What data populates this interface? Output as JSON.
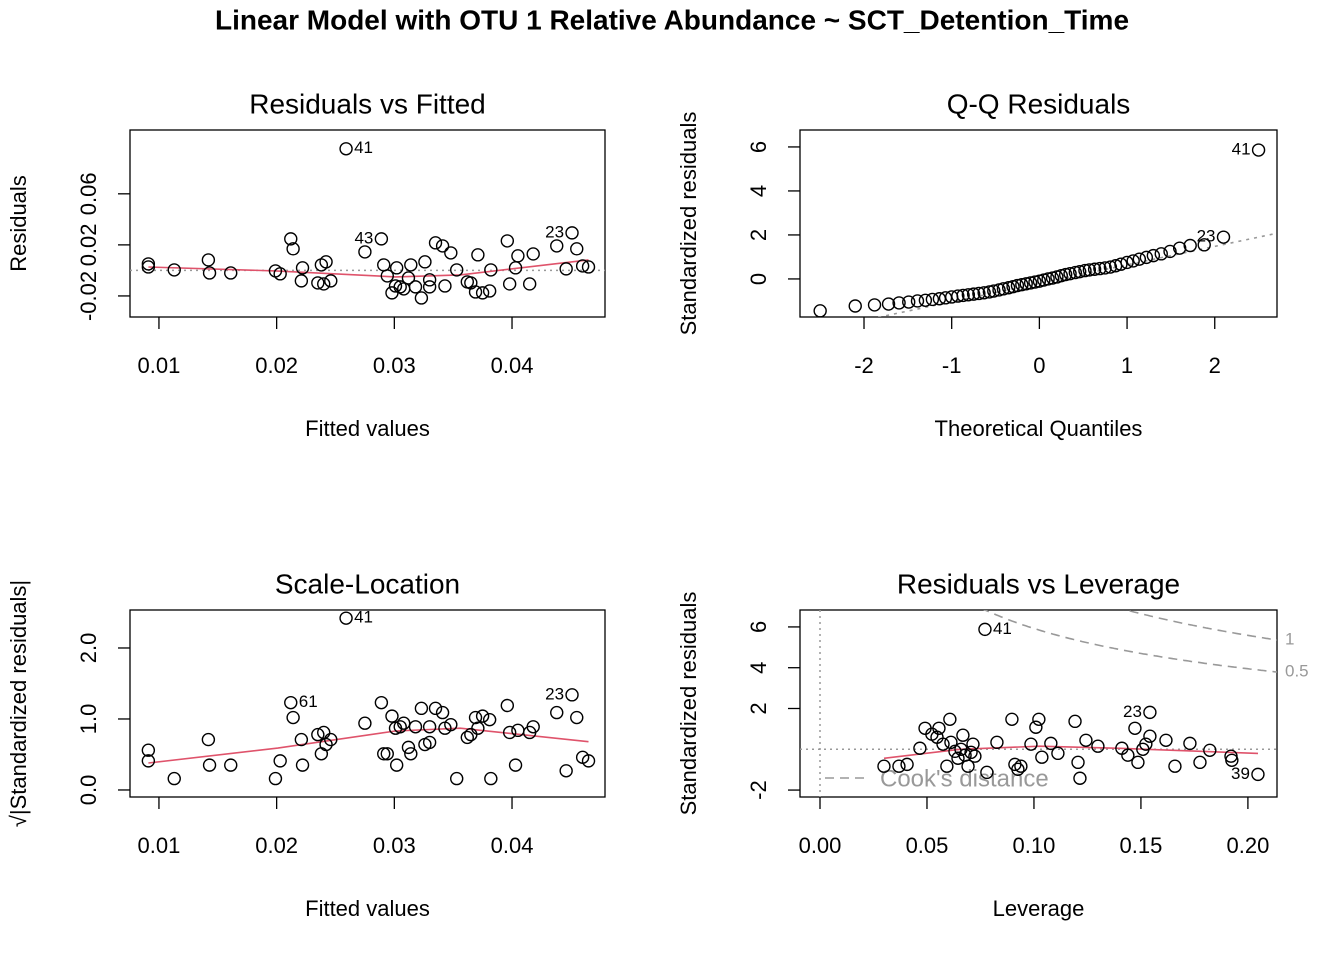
{
  "title": "Linear Model with OTU 1 Relative Abundance ~ SCT_Detention_Time",
  "chart_data": [
    {
      "type": "scatter",
      "title": "Residuals vs Fitted",
      "xlabel": "Fitted values",
      "ylabel": "Residuals",
      "x": [
        0.0091,
        0.0091,
        0.0113,
        0.0142,
        0.0143,
        0.0161,
        0.0199,
        0.0203,
        0.0212,
        0.0214,
        0.0221,
        0.0222,
        0.0235,
        0.0238,
        0.024,
        0.0242,
        0.0246,
        0.0259,
        0.0275,
        0.0289,
        0.0291,
        0.0294,
        0.0298,
        0.0301,
        0.0302,
        0.0305,
        0.0308,
        0.0312,
        0.0314,
        0.0318,
        0.0323,
        0.0326,
        0.033,
        0.033,
        0.0335,
        0.0341,
        0.0343,
        0.0348,
        0.0353,
        0.0362,
        0.0365,
        0.0369,
        0.0371,
        0.0375,
        0.0381,
        0.0382,
        0.0396,
        0.0398,
        0.0403,
        0.0405,
        0.0415,
        0.0418,
        0.0438,
        0.0446,
        0.0451,
        0.0455,
        0.046,
        0.0465
      ],
      "values": [
        0.0027,
        0.0051,
        0.0004,
        0.0082,
        -0.002,
        -0.002,
        -0.0004,
        -0.0027,
        0.0247,
        0.0169,
        -0.0082,
        0.002,
        -0.0098,
        0.0043,
        -0.0106,
        0.0067,
        -0.0082,
        0.0953,
        0.0145,
        0.0247,
        0.0043,
        -0.0043,
        -0.0176,
        -0.0122,
        0.002,
        -0.0129,
        -0.0145,
        -0.0059,
        0.0043,
        -0.0129,
        -0.0216,
        0.0067,
        -0.0129,
        -0.0074,
        0.0216,
        0.0192,
        -0.0122,
        0.0137,
        0.0004,
        -0.009,
        -0.0098,
        -0.0169,
        0.0122,
        -0.0176,
        -0.0161,
        0.0004,
        0.0231,
        -0.0106,
        0.002,
        0.0114,
        -0.0106,
        0.0129,
        0.0192,
        0.0012,
        0.0294,
        0.0169,
        0.0035,
        0.0027
      ],
      "point_labels": [
        null,
        null,
        null,
        null,
        null,
        null,
        null,
        null,
        null,
        null,
        null,
        null,
        null,
        null,
        null,
        null,
        null,
        "41",
        null,
        "43",
        null,
        null,
        null,
        null,
        null,
        null,
        null,
        null,
        null,
        null,
        null,
        null,
        null,
        null,
        null,
        null,
        null,
        null,
        null,
        null,
        null,
        null,
        null,
        null,
        null,
        null,
        null,
        null,
        null,
        null,
        null,
        null,
        null,
        null,
        "23",
        null,
        null,
        null
      ],
      "smooth": {
        "x": [
          0.0091,
          0.0199,
          0.0301,
          0.0356,
          0.0465
        ],
        "values": [
          0.0027,
          -0.0004,
          -0.0051,
          -0.0035,
          0.0082
        ],
        "color": "#df536b"
      },
      "hline": 0,
      "xlim": [
        0.00754,
        0.0479
      ],
      "ylim": [
        -0.0365,
        0.11
      ],
      "xticks": [
        0.01,
        0.02,
        0.03,
        0.04
      ],
      "yticks": [
        -0.02,
        0.02,
        0.06
      ]
    },
    {
      "type": "scatter",
      "title": "Q-Q Residuals",
      "xlabel": "Theoretical Quantiles",
      "ylabel": "Standardized residuals",
      "x": [
        -2.5,
        -2.1,
        -1.88,
        -1.72,
        -1.6,
        -1.49,
        -1.39,
        -1.3,
        -1.22,
        -1.14,
        -1.07,
        -1,
        -0.93,
        -0.87,
        -0.81,
        -0.75,
        -0.69,
        -0.63,
        -0.57,
        -0.52,
        -0.46,
        -0.41,
        -0.35,
        -0.3,
        -0.25,
        -0.2,
        -0.15,
        -0.1,
        -0.05,
        0,
        0.05,
        0.1,
        0.15,
        0.2,
        0.25,
        0.3,
        0.35,
        0.41,
        0.46,
        0.52,
        0.57,
        0.63,
        0.69,
        0.75,
        0.81,
        0.87,
        0.93,
        1,
        1.07,
        1.14,
        1.22,
        1.3,
        1.39,
        1.49,
        1.6,
        1.72,
        1.88,
        2.1,
        2.5
      ],
      "values": [
        -1.45,
        -1.23,
        -1.18,
        -1.14,
        -1.09,
        -1.05,
        -1,
        -0.97,
        -0.93,
        -0.9,
        -0.86,
        -0.82,
        -0.78,
        -0.75,
        -0.72,
        -0.69,
        -0.66,
        -0.63,
        -0.59,
        -0.55,
        -0.5,
        -0.45,
        -0.4,
        -0.35,
        -0.3,
        -0.26,
        -0.22,
        -0.18,
        -0.14,
        -0.1,
        -0.05,
        0,
        0.04,
        0.09,
        0.15,
        0.2,
        0.24,
        0.29,
        0.33,
        0.38,
        0.41,
        0.44,
        0.47,
        0.5,
        0.54,
        0.6,
        0.67,
        0.75,
        0.82,
        0.9,
        0.98,
        1.06,
        1.14,
        1.25,
        1.4,
        1.52,
        1.55,
        1.9,
        5.86
      ],
      "point_labels": [
        null,
        null,
        null,
        null,
        null,
        null,
        null,
        null,
        null,
        null,
        null,
        null,
        null,
        null,
        null,
        null,
        null,
        null,
        null,
        null,
        null,
        null,
        null,
        null,
        null,
        null,
        null,
        null,
        null,
        null,
        null,
        null,
        null,
        null,
        null,
        null,
        null,
        null,
        null,
        null,
        null,
        null,
        null,
        null,
        null,
        null,
        null,
        null,
        null,
        null,
        null,
        null,
        null,
        null,
        null,
        null,
        null,
        "23",
        "41"
      ],
      "ref_line": {
        "intercept": -0.2,
        "slope": 0.84
      },
      "xlim": [
        -2.73,
        2.71
      ],
      "ylim": [
        -1.73,
        6.77
      ],
      "xticks": [
        -2,
        -1,
        0,
        1,
        2
      ],
      "yticks": [
        0,
        2,
        4,
        6
      ]
    },
    {
      "type": "scatter",
      "title": "Scale-Location",
      "xlabel": "Fitted values",
      "ylabel": "√|Standardized residuals|",
      "x": [
        0.0091,
        0.0091,
        0.0113,
        0.0142,
        0.0143,
        0.0161,
        0.0199,
        0.0203,
        0.0212,
        0.0214,
        0.0221,
        0.0222,
        0.0235,
        0.0238,
        0.024,
        0.0242,
        0.0246,
        0.0259,
        0.0275,
        0.0289,
        0.0291,
        0.0294,
        0.0298,
        0.0301,
        0.0302,
        0.0305,
        0.0308,
        0.0312,
        0.0314,
        0.0318,
        0.0323,
        0.0326,
        0.033,
        0.033,
        0.0335,
        0.0341,
        0.0343,
        0.0348,
        0.0353,
        0.0362,
        0.0365,
        0.0369,
        0.0371,
        0.0375,
        0.0381,
        0.0382,
        0.0396,
        0.0398,
        0.0403,
        0.0405,
        0.0415,
        0.0418,
        0.0438,
        0.0446,
        0.0451,
        0.0455,
        0.046,
        0.0465
      ],
      "values": [
        0.41,
        0.56,
        0.16,
        0.71,
        0.35,
        0.35,
        0.16,
        0.41,
        1.23,
        1.02,
        0.71,
        0.35,
        0.78,
        0.51,
        0.81,
        0.64,
        0.71,
        2.42,
        0.94,
        1.23,
        0.51,
        0.51,
        1.04,
        0.87,
        0.35,
        0.89,
        0.94,
        0.6,
        0.51,
        0.89,
        1.15,
        0.64,
        0.89,
        0.67,
        1.15,
        1.09,
        0.87,
        0.92,
        0.16,
        0.74,
        0.78,
        1.02,
        0.87,
        1.04,
        0.99,
        0.16,
        1.19,
        0.81,
        0.35,
        0.84,
        0.81,
        0.89,
        1.09,
        0.27,
        1.34,
        1.02,
        0.46,
        0.41
      ],
      "point_labels": [
        null,
        null,
        null,
        null,
        null,
        null,
        null,
        null,
        "61",
        null,
        null,
        null,
        null,
        null,
        null,
        null,
        null,
        "41",
        null,
        null,
        null,
        null,
        null,
        null,
        null,
        null,
        null,
        null,
        null,
        null,
        null,
        null,
        null,
        null,
        null,
        null,
        null,
        null,
        null,
        null,
        null,
        null,
        null,
        null,
        null,
        null,
        null,
        null,
        null,
        null,
        null,
        null,
        null,
        null,
        "23",
        null,
        null,
        null
      ],
      "smooth": {
        "x": [
          0.0091,
          0.0201,
          0.0301,
          0.0356,
          0.0465
        ],
        "values": [
          0.38,
          0.59,
          0.83,
          0.87,
          0.68
        ],
        "color": "#df536b"
      },
      "xlim": [
        0.00754,
        0.0479
      ],
      "ylim": [
        -0.099,
        2.535
      ],
      "xticks": [
        0.01,
        0.02,
        0.03,
        0.04
      ],
      "yticks": [
        {
          "value": 0,
          "label": "0.0"
        },
        {
          "value": 1,
          "label": "1.0"
        },
        {
          "value": 2,
          "label": "2.0"
        }
      ]
    },
    {
      "type": "scatter",
      "title": "Residuals vs Leverage",
      "xlabel": "Leverage",
      "ylabel": "Standardized residuals",
      "x": [
        0.0299,
        0.0369,
        0.0407,
        0.0467,
        0.0491,
        0.0523,
        0.0547,
        0.0556,
        0.0575,
        0.0593,
        0.0607,
        0.0612,
        0.0631,
        0.0645,
        0.0659,
        0.0668,
        0.0678,
        0.0692,
        0.0706,
        0.0715,
        0.0724,
        0.0771,
        0.078,
        0.0827,
        0.0897,
        0.0911,
        0.0925,
        0.0939,
        0.0986,
        0.1009,
        0.1023,
        0.1037,
        0.1079,
        0.1112,
        0.1192,
        0.1206,
        0.1215,
        0.1243,
        0.1299,
        0.1411,
        0.1439,
        0.1472,
        0.1486,
        0.1509,
        0.1523,
        0.1542,
        0.1542,
        0.1617,
        0.1659,
        0.1729,
        0.1776,
        0.1822,
        0.1921,
        0.1925,
        0.2047
      ],
      "values": [
        -0.83,
        -0.83,
        -0.74,
        0.05,
        1.03,
        0.74,
        0.59,
        1.03,
        0.25,
        -0.83,
        1.47,
        0.34,
        -0.1,
        -0.44,
        0,
        0.69,
        -0.29,
        -0.83,
        -0.15,
        0.25,
        -0.34,
        5.88,
        -1.13,
        0.34,
        1.47,
        -0.74,
        -0.98,
        -0.83,
        0.25,
        1.08,
        1.47,
        -0.39,
        0.29,
        -0.2,
        1.37,
        -0.64,
        -1.42,
        0.44,
        0.15,
        0.05,
        -0.29,
        1.03,
        -0.64,
        0,
        0.25,
        1.81,
        0.64,
        0.44,
        -0.83,
        0.29,
        -0.64,
        -0.05,
        -0.34,
        -0.54,
        -1.23
      ],
      "point_labels": [
        null,
        null,
        null,
        null,
        null,
        null,
        null,
        null,
        null,
        null,
        null,
        null,
        null,
        null,
        null,
        null,
        null,
        null,
        null,
        null,
        null,
        "41",
        null,
        null,
        null,
        null,
        null,
        null,
        null,
        null,
        null,
        null,
        null,
        null,
        null,
        null,
        null,
        null,
        null,
        null,
        null,
        null,
        null,
        null,
        null,
        "23",
        null,
        null,
        null,
        null,
        null,
        null,
        null,
        null,
        "39"
      ],
      "smooth": {
        "x": [
          0.0299,
          0.0654,
          0.1028,
          0.1402,
          0.2047
        ],
        "values": [
          -0.44,
          0,
          0.15,
          0.05,
          -0.2
        ],
        "color": "#df536b"
      },
      "hline": 0,
      "vline": 0,
      "cook_levels": [
        0.5,
        1
      ],
      "cook_legend": "Cook's distance",
      "xlim": [
        -0.00935,
        0.2136
      ],
      "ylim": [
        -2.34,
        6.83
      ],
      "xticks": [
        {
          "value": 0,
          "label": "0.00"
        },
        0.05,
        {
          "value": 0.1,
          "label": "0.10"
        },
        0.15,
        {
          "value": 0.2,
          "label": "0.20"
        }
      ],
      "yticks": [
        -2,
        2,
        4,
        6
      ]
    }
  ]
}
